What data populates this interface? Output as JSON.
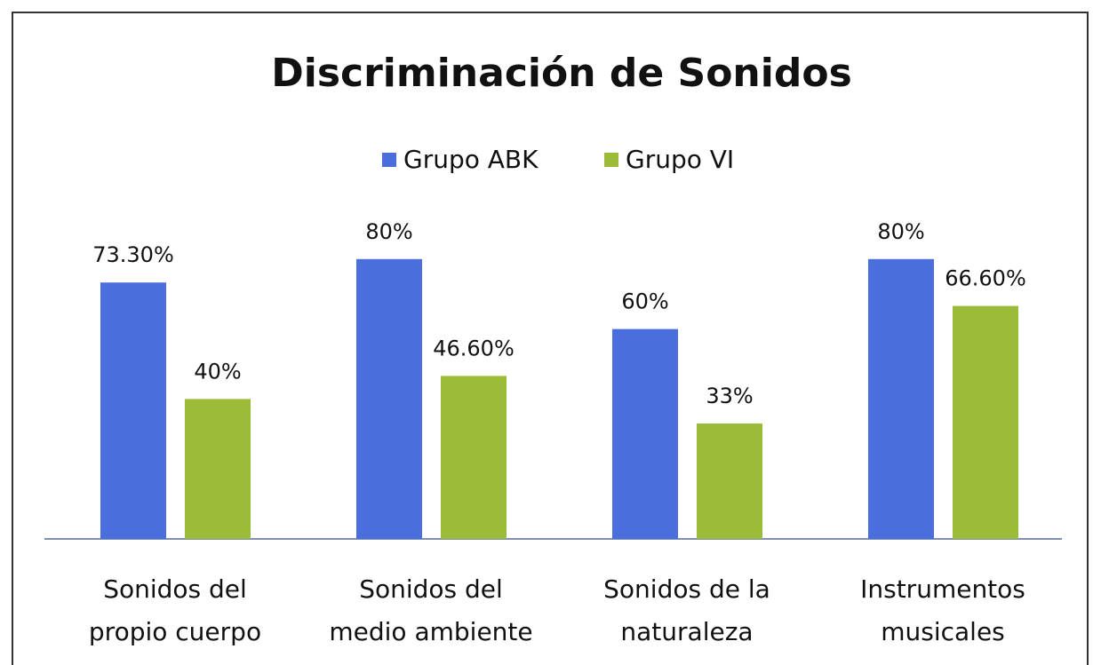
{
  "chart_data": {
    "type": "bar",
    "title": "Discriminación de Sonidos",
    "categories": [
      [
        "Sonidos del",
        "propio cuerpo"
      ],
      [
        "Sonidos del",
        "medio ambiente"
      ],
      [
        "Sonidos de la",
        "naturaleza"
      ],
      [
        "Instrumentos",
        "musicales"
      ]
    ],
    "series": [
      {
        "name": "Grupo ABK",
        "color": "#4a6fdc",
        "values": [
          73.3,
          80,
          60,
          80
        ],
        "value_labels": [
          "73.30%",
          "80%",
          "60%",
          "80%"
        ]
      },
      {
        "name": "Grupo VI",
        "color": "#9bbb39",
        "values": [
          40,
          46.6,
          33,
          66.6
        ],
        "value_labels": [
          "40%",
          "46.60%",
          "33%",
          "66.60%"
        ]
      }
    ]
  }
}
